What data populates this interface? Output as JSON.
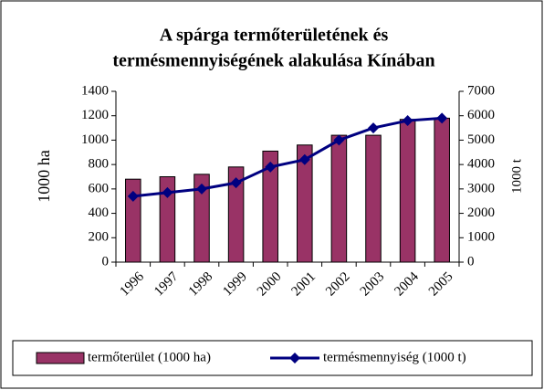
{
  "chart_data": {
    "type": "bar-line",
    "title": [
      "A spárga termőterületének és",
      "termésmennyiségének alakulása Kínában"
    ],
    "categories": [
      "1996",
      "1997",
      "1998",
      "1999",
      "2000",
      "2001",
      "2002",
      "2003",
      "2004",
      "2005"
    ],
    "series": [
      {
        "name": "termőterület (1000 ha)",
        "type": "bar",
        "color": "#993366",
        "values": [
          680,
          700,
          720,
          780,
          910,
          960,
          1040,
          1040,
          1170,
          1180
        ]
      },
      {
        "name": "termésmennyiség (1000 t)",
        "type": "line",
        "axis": "y2",
        "color": "#000080",
        "values": [
          2700,
          2850,
          3000,
          3250,
          3900,
          4200,
          5000,
          5500,
          5800,
          5900
        ]
      }
    ],
    "ylabel": "1000 ha",
    "y2label": "1000 t",
    "ylim": [
      0,
      1400
    ],
    "yticks": [
      0,
      200,
      400,
      600,
      800,
      1000,
      1200,
      1400
    ],
    "y2lim": [
      0,
      7000
    ],
    "y2ticks": [
      0,
      1000,
      2000,
      3000,
      4000,
      5000,
      6000,
      7000
    ],
    "grid": false,
    "legend": "bottom"
  }
}
